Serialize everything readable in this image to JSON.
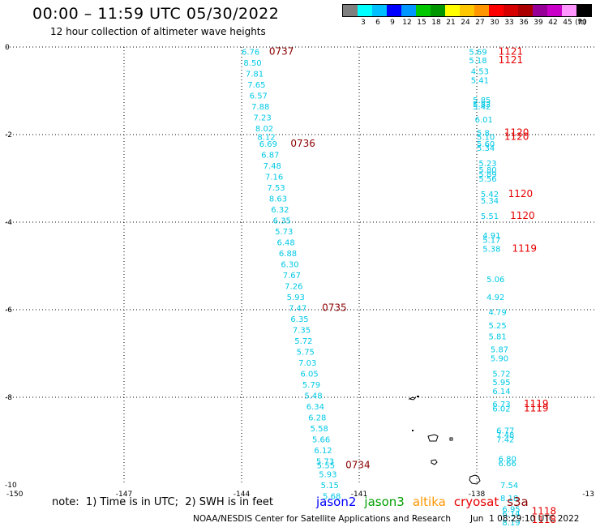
{
  "header": {
    "title": "00:00 – 11:59 UTC 05/30/2022",
    "subtitle": "12 hour collection of altimeter wave heights"
  },
  "legend": {
    "colors": [
      "#7f7f7f",
      "#00ffff",
      "#00bfff",
      "#0000ff",
      "#0096ff",
      "#00c800",
      "#009600",
      "#ffff00",
      "#ffc800",
      "#ff9600",
      "#ff0000",
      "#d70000",
      "#aa0000",
      "#960096",
      "#c800c8",
      "#ff96ff",
      "#000000"
    ],
    "labels": [
      "3",
      "6",
      "9",
      "12",
      "15",
      "18",
      "21",
      "24",
      "27",
      "30",
      "33",
      "36",
      "39",
      "42",
      "45",
      "70",
      "(ft)"
    ]
  },
  "map": {
    "lon_range": [
      -150,
      -135
    ],
    "lat_range": [
      -10,
      0
    ],
    "x_ticks": [
      "-150",
      "-147",
      "-144",
      "-141",
      "-138",
      "-13"
    ],
    "y_ticks": [
      "0",
      "-2",
      "-4",
      "-6",
      "-8",
      "-10"
    ],
    "grid": "dotted",
    "swh_color": "#00c8e6",
    "time_color_dark": "#8b0000",
    "time_color_bright": "#e60000",
    "track1_swh": [
      {
        "lat": -0.1,
        "lon": -144.0,
        "v": "6.76"
      },
      {
        "lat": -0.35,
        "lon": -143.95,
        "v": "8.50"
      },
      {
        "lat": -0.6,
        "lon": -143.9,
        "v": "7.81"
      },
      {
        "lat": -0.85,
        "lon": -143.85,
        "v": "7.65"
      },
      {
        "lat": -1.1,
        "lon": -143.8,
        "v": "6.57"
      },
      {
        "lat": -1.35,
        "lon": -143.75,
        "v": "7.88"
      },
      {
        "lat": -1.6,
        "lon": -143.7,
        "v": "7.23"
      },
      {
        "lat": -1.85,
        "lon": -143.65,
        "v": "8.02"
      },
      {
        "lat": -2.05,
        "lon": -143.6,
        "v": "8.12"
      },
      {
        "lat": -2.2,
        "lon": -143.55,
        "v": "6.69"
      },
      {
        "lat": -2.45,
        "lon": -143.5,
        "v": "6.87"
      },
      {
        "lat": -2.7,
        "lon": -143.45,
        "v": "7.48"
      },
      {
        "lat": -2.95,
        "lon": -143.4,
        "v": "7.16"
      },
      {
        "lat": -3.2,
        "lon": -143.35,
        "v": "7.53"
      },
      {
        "lat": -3.45,
        "lon": -143.3,
        "v": "8.63"
      },
      {
        "lat": -3.7,
        "lon": -143.25,
        "v": "6.32"
      },
      {
        "lat": -3.95,
        "lon": -143.2,
        "v": "6.35"
      },
      {
        "lat": -4.2,
        "lon": -143.15,
        "v": "5.73"
      },
      {
        "lat": -4.45,
        "lon": -143.1,
        "v": "6.48"
      },
      {
        "lat": -4.7,
        "lon": -143.05,
        "v": "6.88"
      },
      {
        "lat": -4.95,
        "lon": -143.0,
        "v": "6.30"
      },
      {
        "lat": -5.2,
        "lon": -142.95,
        "v": "7.67"
      },
      {
        "lat": -5.45,
        "lon": -142.9,
        "v": "7.26"
      },
      {
        "lat": -5.7,
        "lon": -142.85,
        "v": "5.93"
      },
      {
        "lat": -5.95,
        "lon": -142.8,
        "v": "7.47"
      },
      {
        "lat": -6.2,
        "lon": -142.75,
        "v": "6.35"
      },
      {
        "lat": -6.45,
        "lon": -142.7,
        "v": "7.35"
      },
      {
        "lat": -6.7,
        "lon": -142.65,
        "v": "5.72"
      },
      {
        "lat": -6.95,
        "lon": -142.6,
        "v": "5.75"
      },
      {
        "lat": -7.2,
        "lon": -142.55,
        "v": "7.03"
      },
      {
        "lat": -7.45,
        "lon": -142.5,
        "v": "6.05"
      },
      {
        "lat": -7.7,
        "lon": -142.45,
        "v": "5.79"
      },
      {
        "lat": -7.95,
        "lon": -142.4,
        "v": "5.48"
      },
      {
        "lat": -8.2,
        "lon": -142.35,
        "v": "6.34"
      },
      {
        "lat": -8.45,
        "lon": -142.3,
        "v": "6.28"
      },
      {
        "lat": -8.7,
        "lon": -142.25,
        "v": "5.58"
      },
      {
        "lat": -8.95,
        "lon": -142.2,
        "v": "5.66"
      },
      {
        "lat": -9.2,
        "lon": -142.15,
        "v": "6.12"
      },
      {
        "lat": -9.45,
        "lon": -142.1,
        "v": "5.73"
      },
      {
        "lat": -9.55,
        "lon": -142.08,
        "v": "5.55"
      },
      {
        "lat": -9.75,
        "lon": -142.03,
        "v": "5.93"
      },
      {
        "lat": -10.0,
        "lon": -141.98,
        "v": "5.15"
      },
      {
        "lat": -10.25,
        "lon": -141.93,
        "v": "5.68"
      }
    ],
    "track1_times": [
      {
        "lat": -0.1,
        "lon": -143.3,
        "v": "0737"
      },
      {
        "lat": -2.2,
        "lon": -142.75,
        "v": "0736"
      },
      {
        "lat": -5.95,
        "lon": -141.95,
        "v": "0735"
      },
      {
        "lat": -9.55,
        "lon": -141.35,
        "v": "0734"
      }
    ],
    "track2_swh": [
      {
        "lat": -0.1,
        "lon": -138.2,
        "v": "5.69"
      },
      {
        "lat": -0.3,
        "lon": -138.2,
        "v": "5.18"
      },
      {
        "lat": -0.55,
        "lon": -138.15,
        "v": "4.53"
      },
      {
        "lat": -0.75,
        "lon": -138.15,
        "v": "5.41"
      },
      {
        "lat": -1.2,
        "lon": -138.1,
        "v": "5.85"
      },
      {
        "lat": -1.3,
        "lon": -138.1,
        "v": "5.82"
      },
      {
        "lat": -1.35,
        "lon": -138.1,
        "v": "5.42"
      },
      {
        "lat": -1.65,
        "lon": -138.05,
        "v": "6.01"
      },
      {
        "lat": -1.95,
        "lon": -138.0,
        "v": "5.8"
      },
      {
        "lat": -2.05,
        "lon": -138.0,
        "v": "5.10"
      },
      {
        "lat": -2.2,
        "lon": -138.0,
        "v": "5.60"
      },
      {
        "lat": -2.3,
        "lon": -138.0,
        "v": "5.34"
      },
      {
        "lat": -2.65,
        "lon": -137.95,
        "v": "5.23"
      },
      {
        "lat": -2.8,
        "lon": -137.95,
        "v": "5.80"
      },
      {
        "lat": -2.9,
        "lon": -137.95,
        "v": "5.89"
      },
      {
        "lat": -3.0,
        "lon": -137.95,
        "v": "5.56"
      },
      {
        "lat": -3.35,
        "lon": -137.9,
        "v": "5.42"
      },
      {
        "lat": -3.5,
        "lon": -137.9,
        "v": "5.34"
      },
      {
        "lat": -3.85,
        "lon": -137.9,
        "v": "5.51"
      },
      {
        "lat": -4.3,
        "lon": -137.85,
        "v": "4.91"
      },
      {
        "lat": -4.4,
        "lon": -137.85,
        "v": "5.17"
      },
      {
        "lat": -4.6,
        "lon": -137.85,
        "v": "5.38"
      },
      {
        "lat": -5.3,
        "lon": -137.75,
        "v": "5.06"
      },
      {
        "lat": -5.7,
        "lon": -137.75,
        "v": "4.92"
      },
      {
        "lat": -6.05,
        "lon": -137.7,
        "v": "4.79"
      },
      {
        "lat": -6.35,
        "lon": -137.7,
        "v": "5.25"
      },
      {
        "lat": -6.6,
        "lon": -137.7,
        "v": "5.81"
      },
      {
        "lat": -6.9,
        "lon": -137.65,
        "v": "5.87"
      },
      {
        "lat": -7.1,
        "lon": -137.65,
        "v": "5.90"
      },
      {
        "lat": -7.45,
        "lon": -137.6,
        "v": "5.72"
      },
      {
        "lat": -7.65,
        "lon": -137.6,
        "v": "5.95"
      },
      {
        "lat": -7.85,
        "lon": -137.6,
        "v": "6.14"
      },
      {
        "lat": -8.15,
        "lon": -137.6,
        "v": "6.73"
      },
      {
        "lat": -8.25,
        "lon": -137.6,
        "v": "6.02"
      },
      {
        "lat": -8.75,
        "lon": -137.5,
        "v": "6.77"
      },
      {
        "lat": -8.85,
        "lon": -137.5,
        "v": "7.48"
      },
      {
        "lat": -8.95,
        "lon": -137.5,
        "v": "7.42"
      },
      {
        "lat": -9.4,
        "lon": -137.45,
        "v": "6.80"
      },
      {
        "lat": -9.5,
        "lon": -137.45,
        "v": "6.66"
      },
      {
        "lat": -10.0,
        "lon": -137.4,
        "v": "7.54"
      },
      {
        "lat": -10.3,
        "lon": -137.4,
        "v": "8.18"
      },
      {
        "lat": -10.55,
        "lon": -137.35,
        "v": "6.95"
      },
      {
        "lat": -10.65,
        "lon": -137.35,
        "v": "6.14"
      },
      {
        "lat": -10.85,
        "lon": -137.35,
        "v": "8.19"
      }
    ],
    "track2_times": [
      {
        "lat": -0.1,
        "lon": -137.45,
        "v": "1121"
      },
      {
        "lat": -0.3,
        "lon": -137.45,
        "v": "1121"
      },
      {
        "lat": -1.95,
        "lon": -137.3,
        "v": "1120"
      },
      {
        "lat": -2.05,
        "lon": -137.3,
        "v": "1120"
      },
      {
        "lat": -3.35,
        "lon": -137.2,
        "v": "1120"
      },
      {
        "lat": -3.85,
        "lon": -137.15,
        "v": "1120"
      },
      {
        "lat": -4.6,
        "lon": -137.1,
        "v": "1119"
      },
      {
        "lat": -8.15,
        "lon": -136.8,
        "v": "1119"
      },
      {
        "lat": -8.25,
        "lon": -136.8,
        "v": "1119"
      },
      {
        "lat": -10.6,
        "lon": -136.6,
        "v": "1118"
      },
      {
        "lat": -10.8,
        "lon": -136.6,
        "v": "1118"
      }
    ]
  },
  "footer": {
    "note": "note:  1) Time is in UTC;  2) SWH is in feet",
    "satellites": [
      {
        "name": "jason2",
        "color": "#0000ff"
      },
      {
        "name": "jason3",
        "color": "#00a000"
      },
      {
        "name": "altika",
        "color": "#ff9600"
      },
      {
        "name": "cryosat",
        "color": "#e60000"
      },
      {
        "name": "s3a",
        "color": "#8b0000"
      }
    ],
    "credit": "NOAA/NESDIS Center for Satellite Applications and Research",
    "timestamp": "Jun  1 08:29:10 UTC 2022"
  }
}
